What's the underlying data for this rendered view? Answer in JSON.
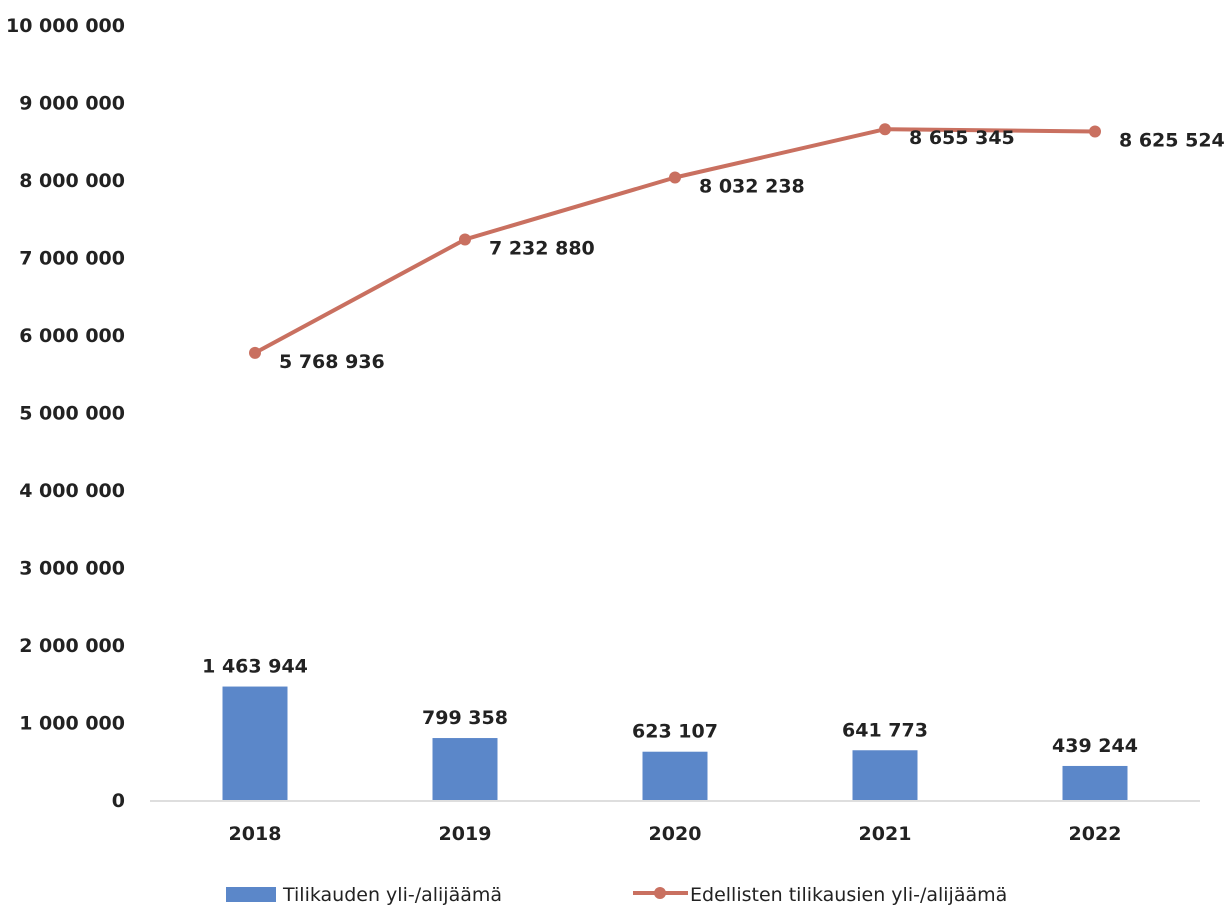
{
  "chart_data": {
    "type": "bar",
    "categories": [
      "2018",
      "2019",
      "2020",
      "2021",
      "2022"
    ],
    "series": [
      {
        "name": "Tilikauden yli-/alijäämä",
        "type": "bar",
        "color": "#5b87c9",
        "values": [
          1463944,
          799358,
          623107,
          641773,
          439244
        ],
        "labels": [
          "1 463 944",
          "799 358",
          "623 107",
          "641 773",
          "439 244"
        ]
      },
      {
        "name": "Edellisten tilikausien yli-/alijäämä",
        "type": "line",
        "color": "#c97060",
        "values": [
          5768936,
          7232880,
          8032238,
          8655345,
          8625524
        ],
        "labels": [
          "5 768 936",
          "7 232 880",
          "8 032 238",
          "8 655 345",
          "8 625 524"
        ]
      }
    ],
    "y_ticks": [
      {
        "value": 0,
        "label": "0"
      },
      {
        "value": 1000000,
        "label": "1 000 000"
      },
      {
        "value": 2000000,
        "label": "2 000 000"
      },
      {
        "value": 3000000,
        "label": "3 000 000"
      },
      {
        "value": 4000000,
        "label": "4 000 000"
      },
      {
        "value": 5000000,
        "label": "5 000 000"
      },
      {
        "value": 6000000,
        "label": "6 000 000"
      },
      {
        "value": 7000000,
        "label": "7 000 000"
      },
      {
        "value": 8000000,
        "label": "8 000 000"
      },
      {
        "value": 9000000,
        "label": "9 000 000"
      },
      {
        "value": 10000000,
        "label": "10 000 000"
      }
    ],
    "ylim": [
      0,
      10000000
    ],
    "grid": false,
    "legend_position": "bottom"
  }
}
